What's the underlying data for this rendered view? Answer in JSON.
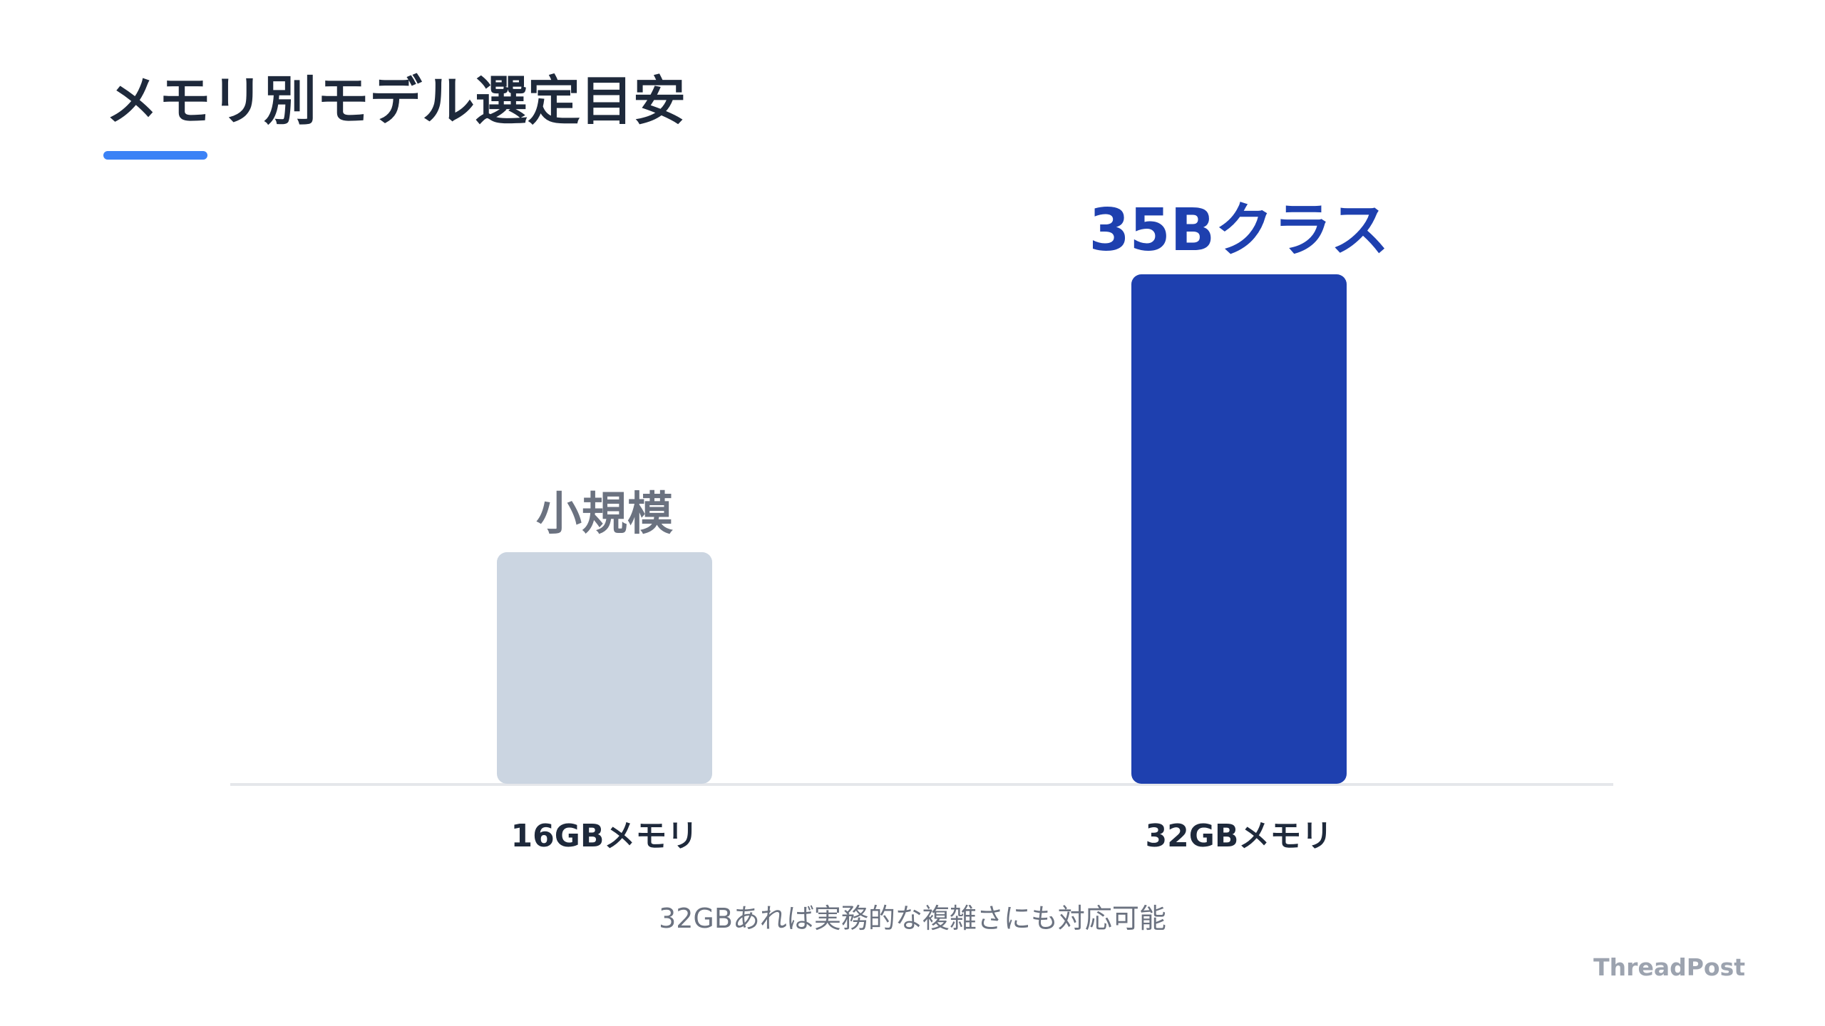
{
  "page": {
    "title": "メモリ別モデル選定目安",
    "caption": "32GBあれば実務的な複雑さにも対応可能",
    "brand": "ThreadPost"
  },
  "colors": {
    "accent": "#3b82f6",
    "title": "#1e293b",
    "muted_text": "#6b7280",
    "brand_text": "#9ca3af",
    "axis_line": "#e5e7eb",
    "category_label": "#1e293b"
  },
  "chart_data": {
    "type": "bar",
    "categories": [
      "16GBメモリ",
      "32GBメモリ"
    ],
    "values": [
      1,
      2.2
    ],
    "data_labels": [
      "小規模",
      "35Bクラス"
    ],
    "bar_colors": [
      "#cbd5e1",
      "#1e40af"
    ],
    "label_colors": [
      "#6b7280",
      "#1e40af"
    ],
    "ylim": [
      0,
      2.2
    ],
    "grid": false,
    "legend": "none"
  }
}
